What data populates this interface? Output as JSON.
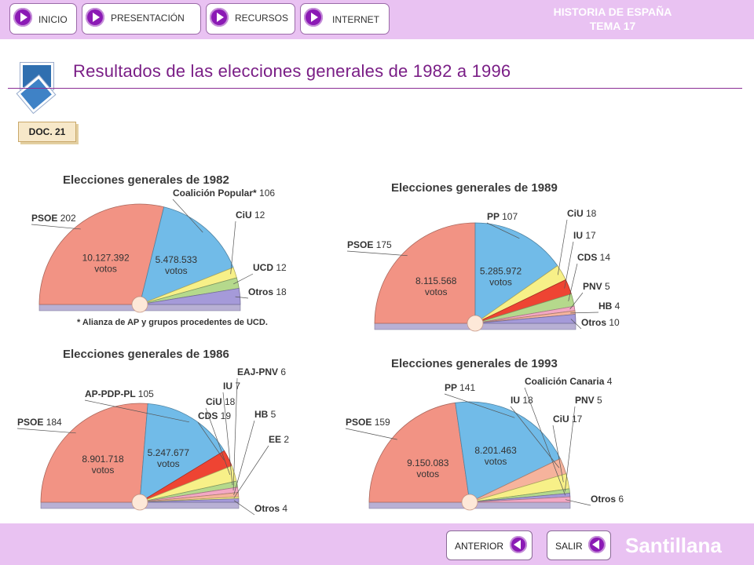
{
  "nav": {
    "inicio": "INICIO",
    "presentacion": "PRESENTACIÓN",
    "recursos": "RECURSOS",
    "internet": "INTERNET",
    "subject": "HISTORIA DE ESPAÑA",
    "unit": "TEMA 17"
  },
  "header": {
    "title": "Resultados de las elecciones generales de 1982 a 1996",
    "doc_label": "DOC. 21"
  },
  "footer": {
    "anterior": "ANTERIOR",
    "salir": "SALIR",
    "brand": "Santillana"
  },
  "colors": {
    "accent": "#8b1ab5",
    "bar": "#e9c2f2",
    "title": "#7a1e86",
    "psoe": "#f29384",
    "pp": "#71bbe8",
    "ciu": "#f7f088",
    "green": "#b5d98c",
    "violet": "#a59ad9",
    "red": "#ee4433",
    "salmon": "#f6b39c",
    "pink": "#f3a8c4"
  },
  "chart_data": [
    {
      "type": "pie",
      "title": "Elecciones generales de 1982",
      "note": "* Alianza de AP y grupos procedentes de UCD.",
      "series": [
        {
          "name": "PSOE",
          "seats": 202,
          "votes_text": "10.127.392",
          "color_key": "psoe"
        },
        {
          "name": "Coalición Popular*",
          "seats": 106,
          "votes_text": "5.478.533",
          "color_key": "pp"
        },
        {
          "name": "CiU",
          "seats": 12,
          "color_key": "ciu"
        },
        {
          "name": "UCD",
          "seats": 12,
          "color_key": "green"
        },
        {
          "name": "Otros",
          "seats": 18,
          "color_key": "violet"
        }
      ],
      "votes_unit": "votos"
    },
    {
      "type": "pie",
      "title": "Elecciones generales de 1989",
      "series": [
        {
          "name": "PSOE",
          "seats": 175,
          "votes_text": "8.115.568",
          "color_key": "psoe"
        },
        {
          "name": "PP",
          "seats": 107,
          "votes_text": "5.285.972",
          "color_key": "pp"
        },
        {
          "name": "CiU",
          "seats": 18,
          "color_key": "ciu"
        },
        {
          "name": "IU",
          "seats": 17,
          "color_key": "red"
        },
        {
          "name": "CDS",
          "seats": 14,
          "color_key": "green"
        },
        {
          "name": "PNV",
          "seats": 5,
          "color_key": "pink"
        },
        {
          "name": "HB",
          "seats": 4,
          "color_key": "salmon"
        },
        {
          "name": "Otros",
          "seats": 10,
          "color_key": "violet"
        }
      ],
      "votes_unit": "votos"
    },
    {
      "type": "pie",
      "title": "Elecciones generales de 1986",
      "series": [
        {
          "name": "PSOE",
          "seats": 184,
          "votes_text": "8.901.718",
          "color_key": "psoe"
        },
        {
          "name": "AP-PDP-PL",
          "seats": 105,
          "votes_text": "5.247.677",
          "color_key": "pp"
        },
        {
          "name": "CDS",
          "seats": 19,
          "color_key": "red"
        },
        {
          "name": "CiU",
          "seats": 18,
          "color_key": "ciu"
        },
        {
          "name": "IU",
          "seats": 7,
          "color_key": "green"
        },
        {
          "name": "EAJ-PNV",
          "seats": 6,
          "color_key": "pink"
        },
        {
          "name": "HB",
          "seats": 5,
          "color_key": "salmon"
        },
        {
          "name": "EE",
          "seats": 2,
          "color_key": "ciu"
        },
        {
          "name": "Otros",
          "seats": 4,
          "color_key": "violet"
        }
      ],
      "votes_unit": "votos"
    },
    {
      "type": "pie",
      "title": "Elecciones generales de 1993",
      "series": [
        {
          "name": "PSOE",
          "seats": 159,
          "votes_text": "9.150.083",
          "color_key": "psoe"
        },
        {
          "name": "PP",
          "seats": 141,
          "votes_text": "8.201.463",
          "color_key": "pp"
        },
        {
          "name": "IU",
          "seats": 18,
          "color_key": "salmon"
        },
        {
          "name": "CiU",
          "seats": 17,
          "color_key": "ciu"
        },
        {
          "name": "PNV",
          "seats": 5,
          "color_key": "green"
        },
        {
          "name": "Coalición Canaria",
          "seats": 4,
          "color_key": "violet"
        },
        {
          "name": "Otros",
          "seats": 6,
          "color_key": "pink"
        }
      ],
      "votes_unit": "votos"
    }
  ]
}
